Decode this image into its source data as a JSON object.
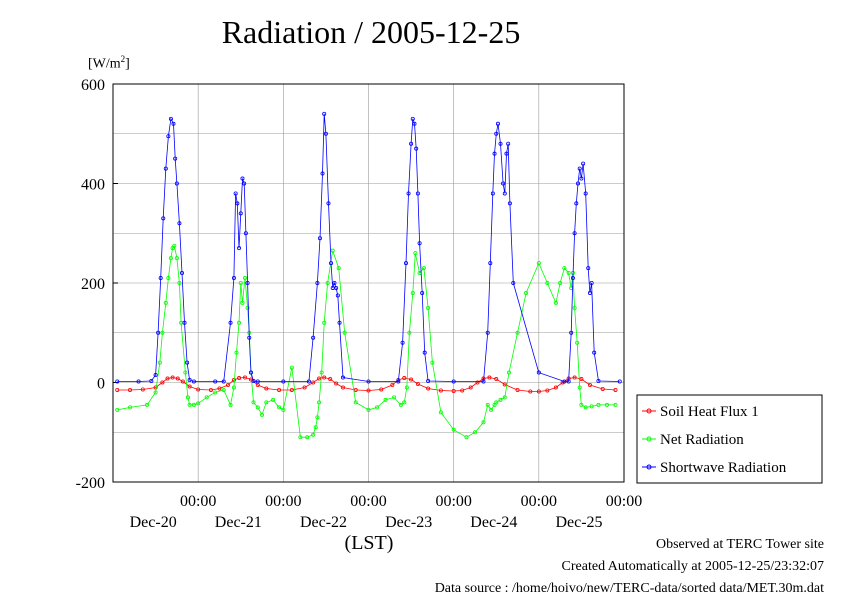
{
  "title": "Radiation / 2005-12-25",
  "unit_label": "[W/m",
  "unit_sup": "2",
  "unit_close": "]",
  "xlabel": "(LST)",
  "footer": {
    "line1": "Observed at TERC Tower site",
    "line2": "Created Automatically at 2005-12-25/23:32:07",
    "line3": "Data source : /home/hoivo/new/TERC-data/sorted  data/MET.30m.dat"
  },
  "chart_data": {
    "type": "line",
    "x_unit": "day offset from Dec-20 00:00",
    "xlim": [
      -1.0,
      5.0
    ],
    "ylim": [
      -200,
      600
    ],
    "yticks": [
      -200,
      0,
      200,
      400,
      600
    ],
    "xticks": [
      {
        "x": 0,
        "time": "00:00",
        "date": "Dec-20"
      },
      {
        "x": 1,
        "time": "00:00",
        "date": "Dec-21"
      },
      {
        "x": 2,
        "time": "00:00",
        "date": "Dec-22"
      },
      {
        "x": 3,
        "time": "00:00",
        "date": "Dec-23"
      },
      {
        "x": 4,
        "time": "00:00",
        "date": "Dec-24"
      },
      {
        "x": 5,
        "time": "00:00",
        "date": "Dec-25"
      }
    ],
    "grid": true,
    "legend_position": "right",
    "series": [
      {
        "name": "Soil Heat Flux 1",
        "color": "#ff0000",
        "x": [
          -0.95,
          -0.8,
          -0.65,
          -0.5,
          -0.42,
          -0.36,
          -0.3,
          -0.24,
          -0.18,
          -0.1,
          0.0,
          0.15,
          0.25,
          0.35,
          0.42,
          0.48,
          0.55,
          0.62,
          0.7,
          0.8,
          0.95,
          1.1,
          1.25,
          1.35,
          1.42,
          1.48,
          1.55,
          1.62,
          1.7,
          1.85,
          2.0,
          2.15,
          2.28,
          2.35,
          2.42,
          2.5,
          2.58,
          2.7,
          2.85,
          3.0,
          3.1,
          3.2,
          3.28,
          3.35,
          3.42,
          3.5,
          3.6,
          3.75,
          3.9,
          4.0,
          4.1,
          4.2,
          4.28,
          4.35,
          4.42,
          4.5,
          4.6,
          4.75,
          4.9
        ],
        "y": [
          -15,
          -15,
          -14,
          -10,
          0,
          8,
          10,
          8,
          2,
          -8,
          -14,
          -15,
          -12,
          -5,
          5,
          9,
          10,
          6,
          -5,
          -12,
          -15,
          -15,
          -10,
          0,
          8,
          10,
          7,
          -2,
          -10,
          -15,
          -16,
          -14,
          -5,
          5,
          9,
          6,
          -3,
          -12,
          -16,
          -17,
          -16,
          -10,
          0,
          8,
          10,
          7,
          -4,
          -15,
          -18,
          -18,
          -16,
          -10,
          0,
          8,
          10,
          7,
          -5,
          -13,
          -15
        ]
      },
      {
        "name": "Net Radiation",
        "color": "#00ff00",
        "x": [
          -0.95,
          -0.8,
          -0.6,
          -0.5,
          -0.45,
          -0.42,
          -0.38,
          -0.35,
          -0.32,
          -0.3,
          -0.28,
          -0.25,
          -0.22,
          -0.2,
          -0.15,
          -0.12,
          -0.1,
          -0.05,
          0.0,
          0.1,
          0.2,
          0.3,
          0.38,
          0.42,
          0.45,
          0.48,
          0.5,
          0.52,
          0.55,
          0.58,
          0.6,
          0.62,
          0.65,
          0.7,
          0.75,
          0.8,
          0.88,
          0.95,
          1.0,
          1.1,
          1.2,
          1.28,
          1.35,
          1.38,
          1.4,
          1.42,
          1.45,
          1.48,
          1.52,
          1.58,
          1.65,
          1.72,
          1.85,
          2.0,
          2.1,
          2.2,
          2.3,
          2.38,
          2.42,
          2.45,
          2.48,
          2.52,
          2.55,
          2.6,
          2.65,
          2.7,
          2.75,
          2.85,
          3.0,
          3.15,
          3.25,
          3.35,
          3.4,
          3.44,
          3.48,
          3.5,
          3.55,
          3.6,
          3.65,
          3.75,
          3.85,
          4.0,
          4.1,
          4.2,
          4.25,
          4.3,
          4.35,
          4.38,
          4.4,
          4.42,
          4.45,
          4.48,
          4.5,
          4.55,
          4.62,
          4.7,
          4.8,
          4.9
        ],
        "y": [
          -55,
          -50,
          -45,
          -20,
          40,
          100,
          160,
          210,
          250,
          270,
          275,
          250,
          200,
          120,
          20,
          -30,
          -45,
          -45,
          -42,
          -30,
          -20,
          -15,
          -45,
          -10,
          60,
          120,
          200,
          160,
          210,
          150,
          100,
          20,
          -40,
          -50,
          -65,
          -40,
          -35,
          -50,
          -55,
          30,
          -110,
          -110,
          -105,
          -90,
          -70,
          -40,
          20,
          120,
          200,
          265,
          230,
          100,
          -40,
          -55,
          -50,
          -35,
          -30,
          -45,
          -40,
          -10,
          100,
          180,
          260,
          220,
          230,
          150,
          40,
          -60,
          -95,
          -110,
          -100,
          -80,
          -45,
          -55,
          -45,
          -40,
          -35,
          -30,
          20,
          100,
          180,
          240,
          200,
          160,
          200,
          230,
          220,
          190,
          220,
          150,
          80,
          -10,
          -45,
          -50,
          -48,
          -45,
          -45,
          -45
        ],
        "x_note": "combined multi-day trace"
      },
      {
        "name": "Shortwave Radiation",
        "color": "#0000ff",
        "x": [
          -0.95,
          -0.7,
          -0.55,
          -0.5,
          -0.47,
          -0.44,
          -0.41,
          -0.38,
          -0.35,
          -0.32,
          -0.29,
          -0.27,
          -0.25,
          -0.22,
          -0.19,
          -0.16,
          -0.13,
          -0.1,
          -0.05,
          0.2,
          0.3,
          0.38,
          0.42,
          0.44,
          0.46,
          0.48,
          0.5,
          0.52,
          0.54,
          0.56,
          0.58,
          0.6,
          0.62,
          0.65,
          0.7,
          1.0,
          1.3,
          1.35,
          1.4,
          1.43,
          1.46,
          1.48,
          1.5,
          1.53,
          1.56,
          1.58,
          1.6,
          1.62,
          1.64,
          1.66,
          1.7,
          2.0,
          2.35,
          2.4,
          2.44,
          2.47,
          2.5,
          2.52,
          2.54,
          2.56,
          2.58,
          2.6,
          2.63,
          2.66,
          2.7,
          3.0,
          3.35,
          3.4,
          3.43,
          3.46,
          3.48,
          3.5,
          3.52,
          3.55,
          3.58,
          3.6,
          3.62,
          3.64,
          3.66,
          3.7,
          4.0,
          4.3,
          4.35,
          4.38,
          4.4,
          4.42,
          4.44,
          4.46,
          4.48,
          4.5,
          4.52,
          4.55,
          4.58,
          4.6,
          4.62,
          4.65,
          4.7,
          4.95
        ],
        "y": [
          2,
          2,
          3,
          15,
          100,
          210,
          330,
          430,
          495,
          530,
          520,
          450,
          400,
          320,
          220,
          120,
          40,
          5,
          2,
          2,
          2,
          120,
          210,
          380,
          360,
          270,
          340,
          410,
          400,
          300,
          200,
          90,
          20,
          3,
          2,
          2,
          2,
          90,
          200,
          290,
          420,
          540,
          500,
          360,
          240,
          190,
          200,
          190,
          175,
          120,
          10,
          2,
          2,
          80,
          240,
          380,
          480,
          530,
          520,
          470,
          380,
          280,
          180,
          60,
          3,
          2,
          2,
          100,
          240,
          380,
          460,
          500,
          520,
          480,
          400,
          380,
          460,
          480,
          360,
          200,
          20,
          2,
          2,
          100,
          210,
          300,
          360,
          400,
          430,
          410,
          440,
          380,
          230,
          180,
          200,
          60,
          3,
          2
        ]
      }
    ]
  },
  "legend": {
    "items": [
      {
        "label": "Soil Heat Flux 1",
        "color": "#ff0000"
      },
      {
        "label": "Net Radiation",
        "color": "#00ff00"
      },
      {
        "label": "Shortwave Radiation",
        "color": "#0000ff"
      }
    ]
  }
}
